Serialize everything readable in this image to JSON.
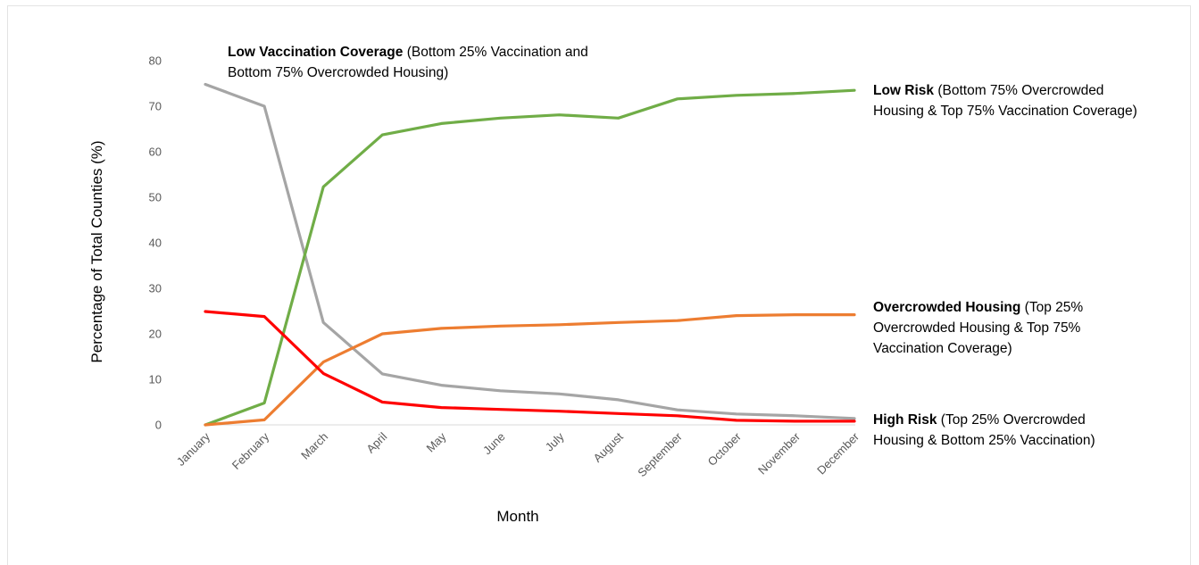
{
  "chart_data": {
    "type": "line",
    "xlabel": "Month",
    "ylabel": "Percentage of Total Counties (%)",
    "ylim": [
      0,
      80
    ],
    "yticks": [
      "0",
      "10",
      "20",
      "30",
      "40",
      "50",
      "60",
      "70",
      "80"
    ],
    "grid": false,
    "categories": [
      "January",
      "February",
      "March",
      "April",
      "May",
      "June",
      "July",
      "August",
      "September",
      "October",
      "November",
      "December"
    ],
    "series": [
      {
        "key": "low_vaccination",
        "color": "#a5a5a5",
        "values": [
          74.8,
          70.0,
          22.5,
          11.2,
          8.7,
          7.5,
          6.8,
          5.5,
          3.3,
          2.4,
          2.0,
          1.4
        ],
        "label_bold": "Low Vaccination Coverage",
        "label_lines": [
          "Low Vaccination Coverage (Bottom 25% Vaccination and",
          "Bottom 75% Overcrowded Housing)"
        ]
      },
      {
        "key": "low_risk",
        "color": "#70ad47",
        "values": [
          0.0,
          4.8,
          52.3,
          63.7,
          66.2,
          67.4,
          68.1,
          67.4,
          71.6,
          72.4,
          72.8,
          73.5
        ],
        "label_bold": "Low Risk",
        "label_lines": [
          "Low Risk  (Bottom 75% Overcrowded",
          "Housing & Top 75% Vaccination Coverage)"
        ]
      },
      {
        "key": "overcrowded_housing",
        "color": "#ed7d31",
        "values": [
          0.0,
          1.1,
          13.8,
          20.0,
          21.2,
          21.7,
          22.0,
          22.5,
          22.9,
          24.0,
          24.2,
          24.2
        ],
        "label_bold": "Overcrowded Housing",
        "label_lines": [
          "Overcrowded Housing (Top 25%",
          "Overcrowded Housing & Top 75%",
          "Vaccination Coverage)"
        ]
      },
      {
        "key": "high_risk",
        "color": "#ff0000",
        "values": [
          24.9,
          23.8,
          11.3,
          5.0,
          3.8,
          3.4,
          3.0,
          2.5,
          2.0,
          1.0,
          0.8,
          0.8
        ],
        "label_bold": "High Risk",
        "label_lines": [
          "High Risk (Top 25% Overcrowded",
          "Housing & Bottom 25% Vaccination)"
        ]
      }
    ]
  }
}
